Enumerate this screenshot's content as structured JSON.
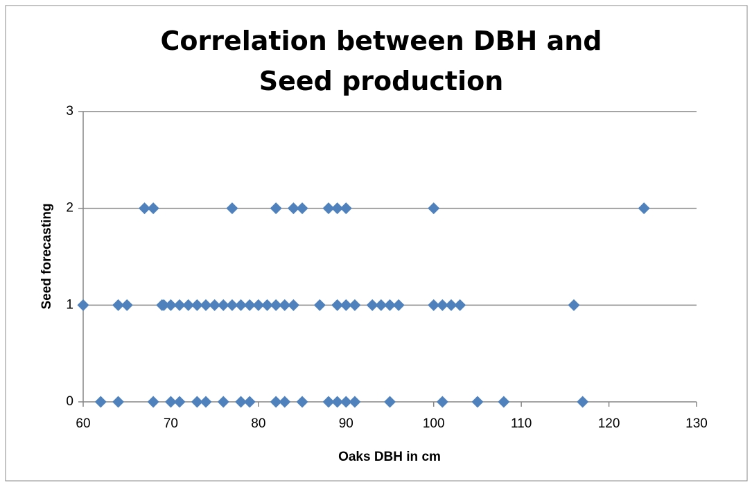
{
  "chart_data": {
    "type": "scatter",
    "title": "Correlation between DBH and Seed production",
    "x_label": "Oaks DBH in cm",
    "y_label": "Seed forecasting",
    "x": [
      67,
      68,
      77,
      82,
      84,
      85,
      88,
      89,
      90,
      100,
      124,
      60,
      64,
      65,
      69,
      69.2,
      70,
      71,
      72,
      73,
      74,
      75,
      76,
      77,
      78,
      79,
      80,
      81,
      82,
      83,
      84,
      87,
      89,
      90,
      91,
      93,
      94,
      95,
      96,
      100,
      101,
      102,
      103,
      116,
      62,
      64,
      68,
      70,
      71,
      73,
      74,
      76,
      78,
      79,
      82,
      83,
      85,
      88,
      89,
      90,
      91,
      95,
      101,
      105,
      108,
      117
    ],
    "values": [
      2,
      2,
      2,
      2,
      2,
      2,
      2,
      2,
      2,
      2,
      2,
      1,
      1,
      1,
      1,
      1,
      1,
      1,
      1,
      1,
      1,
      1,
      1,
      1,
      1,
      1,
      1,
      1,
      1,
      1,
      1,
      1,
      1,
      1,
      1,
      1,
      1,
      1,
      1,
      1,
      1,
      1,
      1,
      1,
      0,
      0,
      0,
      0,
      0,
      0,
      0,
      0,
      0,
      0,
      0,
      0,
      0,
      0,
      0,
      0,
      0,
      0,
      0,
      0,
      0,
      0
    ],
    "color": "#4f81bd",
    "xlim": [
      60,
      130
    ],
    "xticks": [
      60,
      70,
      80,
      90,
      100,
      110,
      120,
      130
    ],
    "ylim": [
      0,
      3
    ],
    "yticks": [
      0,
      1,
      2,
      3
    ],
    "grid": true
  }
}
